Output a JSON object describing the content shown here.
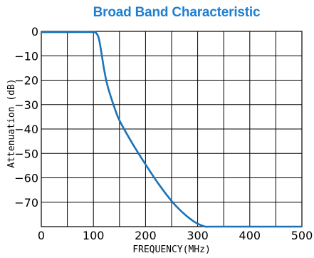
{
  "chart_data": {
    "type": "line",
    "title": "Broad Band Characteristic",
    "xlabel": "FREQUENCY(MHz)",
    "ylabel": "Attenuation (dB)",
    "xlim": [
      0,
      500
    ],
    "ylim": [
      -80,
      0
    ],
    "x_ticks": [
      0,
      100,
      200,
      300,
      400,
      500
    ],
    "y_ticks": [
      0,
      -10,
      -20,
      -30,
      -40,
      -50,
      -60,
      -70
    ],
    "y_tick_labels": [
      "0",
      "−10",
      "−20",
      "−30",
      "−40",
      "−50",
      "−60",
      "−70"
    ],
    "grid": true,
    "line_color": "#1a73b8",
    "title_color": "#1e7fd0",
    "series": [
      {
        "x": [
          0,
          50,
          100,
          104,
          108,
          111,
          114,
          117,
          120,
          125,
          130,
          140,
          150,
          175,
          200,
          225,
          250,
          270,
          290,
          305,
          315,
          325,
          400,
          500
        ],
        "y": [
          -0.3,
          -0.3,
          -0.3,
          -0.5,
          -1.5,
          -3.5,
          -7,
          -11,
          -15,
          -20.5,
          -24.5,
          -31,
          -36.5,
          -46,
          -54.5,
          -62.5,
          -69.5,
          -74,
          -77.5,
          -79.3,
          -80,
          -80,
          -80,
          -80
        ]
      }
    ]
  }
}
